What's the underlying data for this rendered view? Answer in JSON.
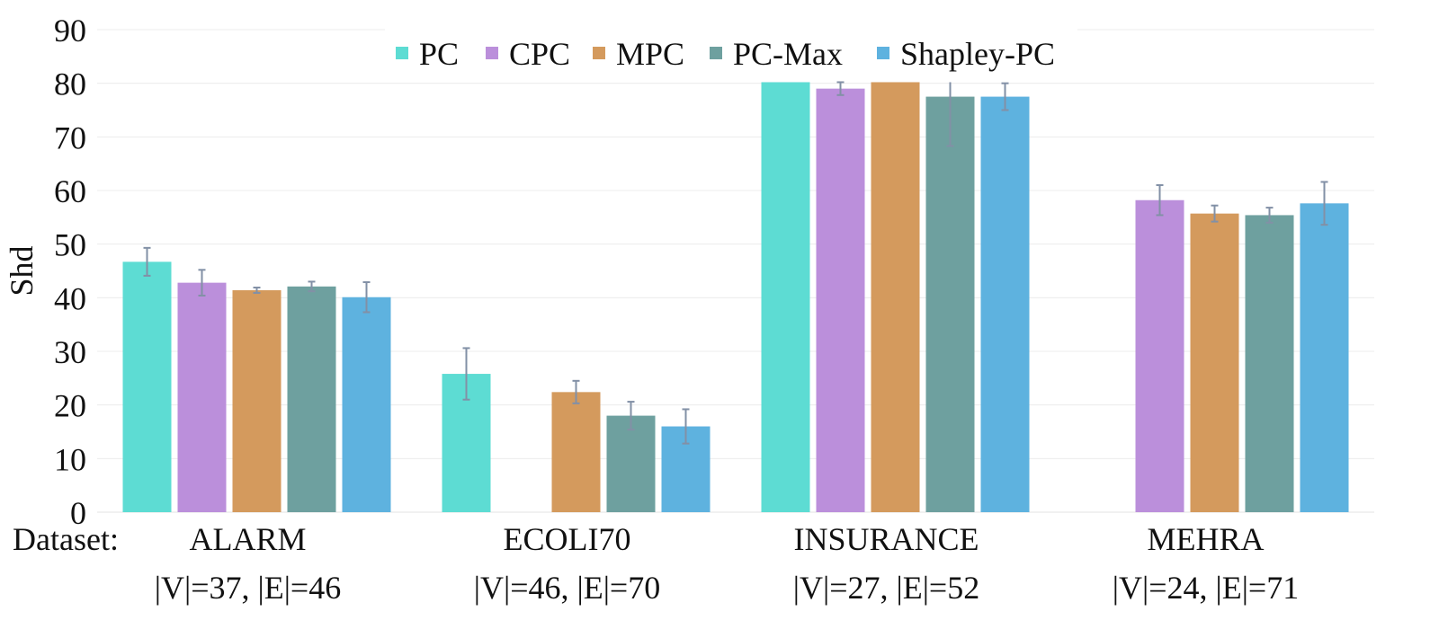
{
  "chart_data": {
    "type": "bar",
    "title": "",
    "xlabel": "Dataset:",
    "ylabel": "Shd",
    "ylim": [
      0,
      90
    ],
    "yticks": [
      0,
      10,
      20,
      30,
      40,
      50,
      60,
      70,
      80,
      90
    ],
    "grid": true,
    "legend_position": "top",
    "categories": [
      "ALARM",
      "ECOLI70",
      "INSURANCE",
      "MEHRA"
    ],
    "category_sublabels": [
      "|V|=37, |E|=46",
      "|V|=46, |E|=70",
      "|V|=27, |E|=52",
      "|V|=24, |E|=71"
    ],
    "series": [
      {
        "name": "PC",
        "color": "#5ddcd3",
        "values": [
          46.7,
          25.8,
          80.5,
          null
        ],
        "errors": [
          2.6,
          4.8,
          0,
          null
        ]
      },
      {
        "name": "CPC",
        "color": "#bb8fdb",
        "values": [
          42.8,
          null,
          79.0,
          58.2
        ],
        "errors": [
          2.4,
          null,
          1.2,
          2.8
        ]
      },
      {
        "name": "MPC",
        "color": "#d49a5d",
        "values": [
          41.4,
          22.4,
          80.5,
          55.7
        ],
        "errors": [
          0.5,
          2.1,
          0,
          1.5
        ]
      },
      {
        "name": "PC-Max",
        "color": "#6ea09f",
        "values": [
          42.1,
          18.0,
          77.5,
          55.4
        ],
        "errors": [
          0.9,
          2.6,
          9.2,
          1.4
        ]
      },
      {
        "name": "Shapley-PC",
        "color": "#5eb2df",
        "values": [
          40.1,
          16.0,
          77.5,
          57.6
        ],
        "errors": [
          2.8,
          3.2,
          2.5,
          4.0
        ]
      }
    ]
  }
}
